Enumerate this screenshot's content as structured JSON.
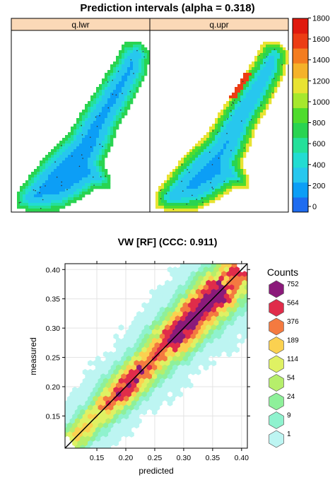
{
  "chart_data": [
    {
      "type": "heatmap",
      "title": "Prediction intervals (alpha = 0.318)",
      "panels": [
        "q.lwr",
        "q.upr"
      ],
      "colorbar": {
        "ticks": [
          0,
          200,
          400,
          600,
          800,
          1000,
          1200,
          1400,
          1600,
          1800
        ],
        "range": [
          0,
          1850
        ],
        "colors": [
          "#1e6cf0",
          "#0c9ef6",
          "#27c7ee",
          "#22dcd2",
          "#24e09a",
          "#29d451",
          "#4fdc2d",
          "#a6e82d",
          "#e8e332",
          "#f5b22a",
          "#f47d20",
          "#ec3d14",
          "#e01a0e"
        ]
      },
      "panel_bg": "#ffffff",
      "strip_color": "#fbd9b7"
    },
    {
      "type": "heatmap",
      "title": "VW [RF]  (CCC: 0.911)",
      "xlabel": "predicted",
      "ylabel": "measured",
      "xlim": [
        0.095,
        0.41
      ],
      "ylim": [
        0.095,
        0.41
      ],
      "x_ticks": [
        0.15,
        0.2,
        0.25,
        0.3,
        0.35,
        0.4
      ],
      "y_ticks": [
        0.15,
        0.2,
        0.25,
        0.3,
        0.35,
        0.4
      ],
      "tick_labels_x": [
        "0.15",
        "0.20",
        "0.25",
        "0.30",
        "0.35",
        "0.40"
      ],
      "tick_labels_y": [
        "0.15",
        "0.20",
        "0.25",
        "0.30",
        "0.35",
        "0.40"
      ],
      "grid": true,
      "reference_line": {
        "from": [
          0.095,
          0.095
        ],
        "to": [
          0.41,
          0.41
        ]
      },
      "legend": {
        "title": "Counts",
        "placement": "right",
        "entries": [
          {
            "label": "752",
            "color": "#8b1a7a"
          },
          {
            "label": "564",
            "color": "#e02c4a"
          },
          {
            "label": "376",
            "color": "#f47a40"
          },
          {
            "label": "189",
            "color": "#fbd150"
          },
          {
            "label": "114",
            "color": "#dff163"
          },
          {
            "label": "54",
            "color": "#b6ee6b"
          },
          {
            "label": "24",
            "color": "#8ef09a"
          },
          {
            "label": "9",
            "color": "#8ff2ce"
          },
          {
            "label": "1",
            "color": "#bdf5f2"
          }
        ]
      }
    }
  ]
}
